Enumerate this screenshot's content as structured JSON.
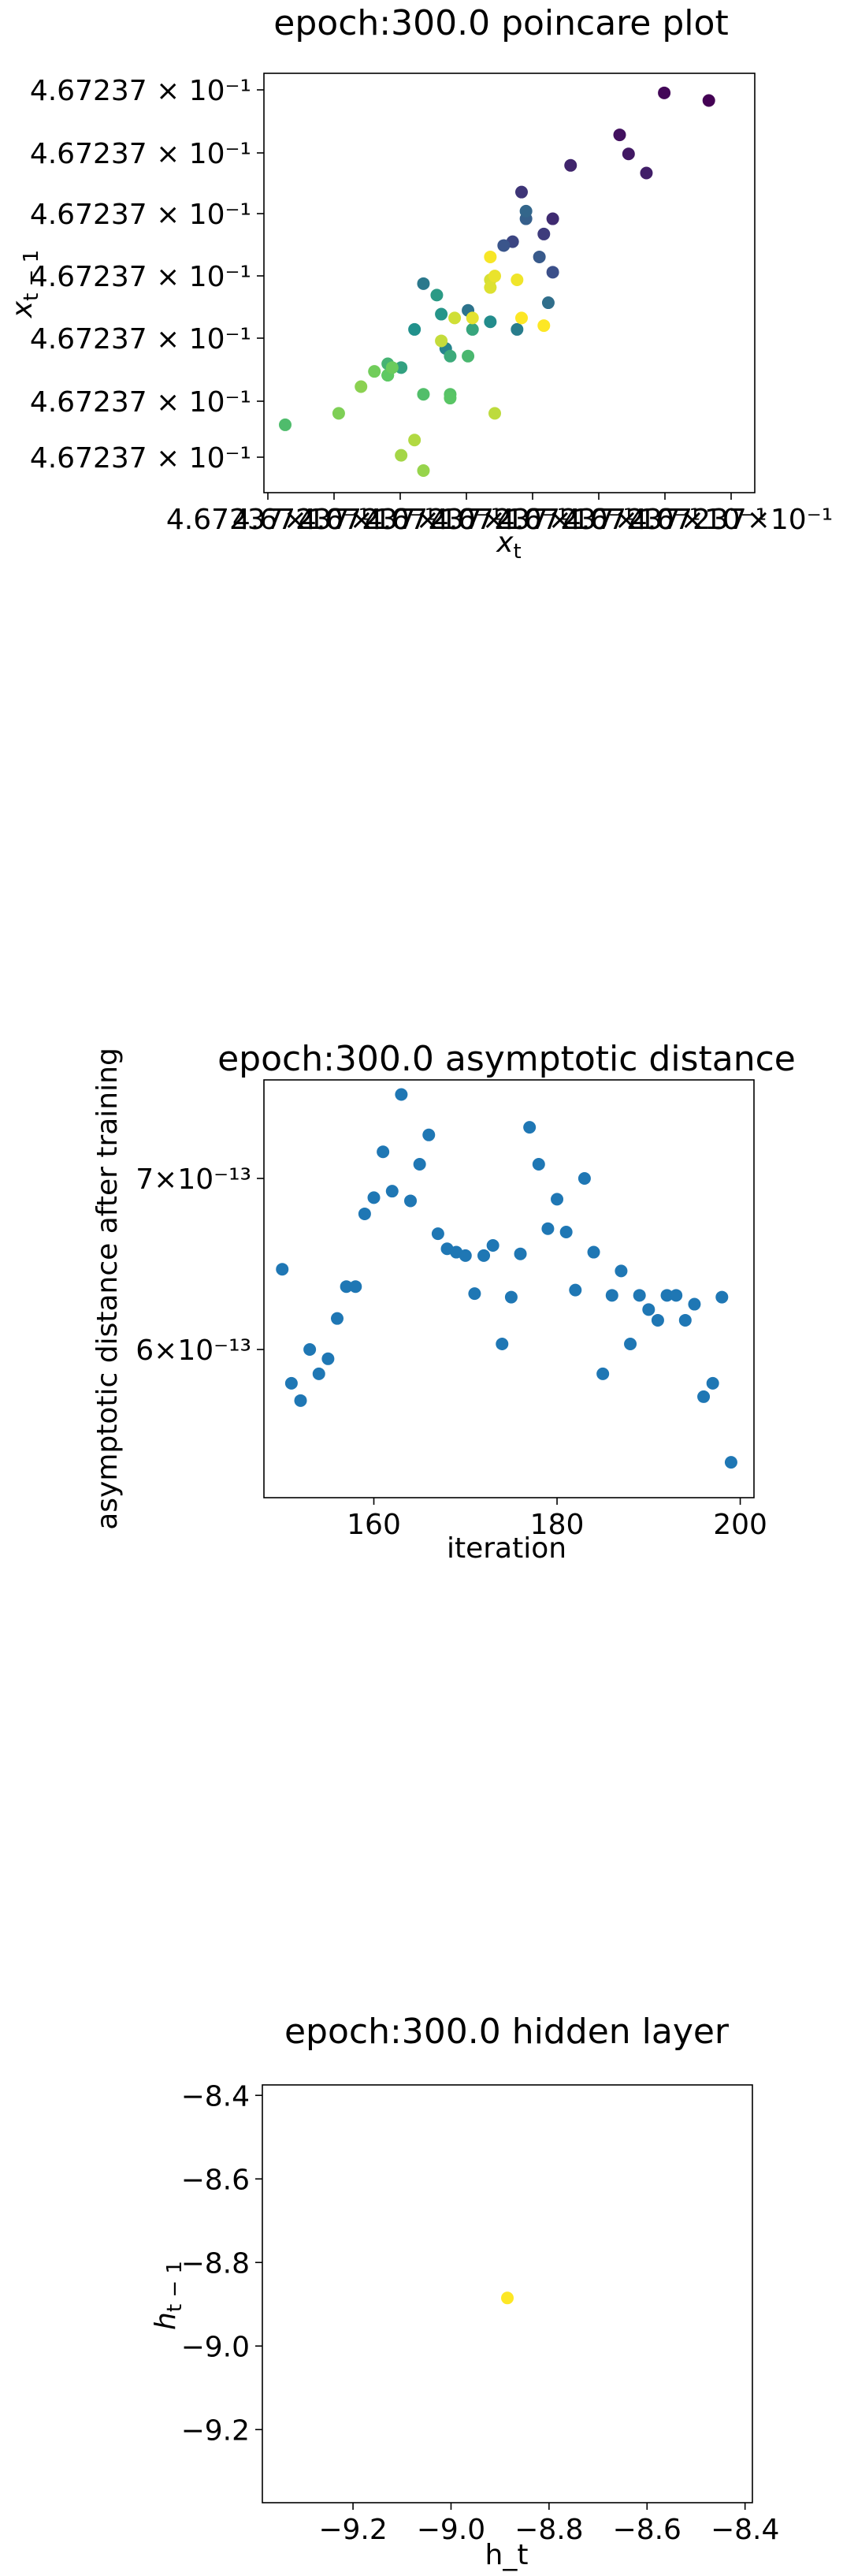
{
  "chart_data": [
    {
      "type": "scatter",
      "title": "epoch:300.0 poincare plot",
      "xlabel": "x_t",
      "ylabel": "x_{t-1}",
      "x_tick_labels": [
        "4.67237×10⁻¹",
        "4.67237×10⁻¹",
        "4.67237×10⁻¹",
        "4.67237×10⁻¹",
        "4.67237×10⁻¹",
        "4.67237×10⁻¹",
        "4.67237×10⁻¹",
        "4.67237×10⁻¹"
      ],
      "y_tick_labels": [
        "4.67237 × 10⁻¹",
        "4.67237 × 10⁻¹",
        "4.67237 × 10⁻¹",
        "4.67237 × 10⁻¹",
        "4.67237 × 10⁻¹",
        "4.67237 × 10⁻¹",
        "4.67237 × 10⁻¹"
      ],
      "colormap": "viridis",
      "xlim": [
        0,
        100
      ],
      "ylim": [
        0,
        100
      ],
      "points": [
        {
          "x": 95,
          "y": 97,
          "c": 0.0
        },
        {
          "x": 85,
          "y": 99,
          "c": 0.02
        },
        {
          "x": 75,
          "y": 88,
          "c": 0.05
        },
        {
          "x": 77,
          "y": 83,
          "c": 0.07
        },
        {
          "x": 81,
          "y": 78,
          "c": 0.09
        },
        {
          "x": 64,
          "y": 80,
          "c": 0.11
        },
        {
          "x": 60,
          "y": 66,
          "c": 0.13
        },
        {
          "x": 53,
          "y": 73,
          "c": 0.16
        },
        {
          "x": 58,
          "y": 62,
          "c": 0.18
        },
        {
          "x": 51,
          "y": 60,
          "c": 0.21
        },
        {
          "x": 60,
          "y": 52,
          "c": 0.24
        },
        {
          "x": 49,
          "y": 59,
          "c": 0.26
        },
        {
          "x": 57,
          "y": 56,
          "c": 0.28
        },
        {
          "x": 54,
          "y": 66,
          "c": 0.3
        },
        {
          "x": 54,
          "y": 68,
          "c": 0.33
        },
        {
          "x": 59,
          "y": 44,
          "c": 0.36
        },
        {
          "x": 41,
          "y": 42,
          "c": 0.38
        },
        {
          "x": 31,
          "y": 49,
          "c": 0.4
        },
        {
          "x": 52,
          "y": 37,
          "c": 0.42
        },
        {
          "x": 36,
          "y": 32,
          "c": 0.45
        },
        {
          "x": 46,
          "y": 39,
          "c": 0.48
        },
        {
          "x": 29,
          "y": 37,
          "c": 0.5
        },
        {
          "x": 35,
          "y": 41,
          "c": 0.52
        },
        {
          "x": 34,
          "y": 46,
          "c": 0.54
        },
        {
          "x": 26,
          "y": 27,
          "c": 0.57
        },
        {
          "x": 42,
          "y": 37,
          "c": 0.59
        },
        {
          "x": 37,
          "y": 30,
          "c": 0.61
        },
        {
          "x": 23,
          "y": 25,
          "c": 0.63
        },
        {
          "x": 23,
          "y": 28,
          "c": 0.65
        },
        {
          "x": 41,
          "y": 30,
          "c": 0.67
        },
        {
          "x": 0,
          "y": 12,
          "c": 0.69
        },
        {
          "x": 31,
          "y": 20,
          "c": 0.7
        },
        {
          "x": 37,
          "y": 20,
          "c": 0.72
        },
        {
          "x": 37,
          "y": 19,
          "c": 0.73
        },
        {
          "x": 23,
          "y": 25,
          "c": 0.75
        },
        {
          "x": 24,
          "y": 27,
          "c": 0.77
        },
        {
          "x": 20,
          "y": 26,
          "c": 0.78
        },
        {
          "x": 12,
          "y": 15,
          "c": 0.8
        },
        {
          "x": 17,
          "y": 22,
          "c": 0.82
        },
        {
          "x": 31,
          "y": 0,
          "c": 0.84
        },
        {
          "x": 26,
          "y": 4,
          "c": 0.86
        },
        {
          "x": 29,
          "y": 8,
          "c": 0.88
        },
        {
          "x": 47,
          "y": 15,
          "c": 0.9
        },
        {
          "x": 35,
          "y": 34,
          "c": 0.91
        },
        {
          "x": 38,
          "y": 40,
          "c": 0.93
        },
        {
          "x": 46,
          "y": 50,
          "c": 0.94
        },
        {
          "x": 46,
          "y": 48,
          "c": 0.95
        },
        {
          "x": 42,
          "y": 40,
          "c": 0.96
        },
        {
          "x": 47,
          "y": 51,
          "c": 0.97
        },
        {
          "x": 52,
          "y": 50,
          "c": 0.98
        },
        {
          "x": 46,
          "y": 56,
          "c": 0.99
        },
        {
          "x": 58,
          "y": 38,
          "c": 1.0
        },
        {
          "x": 53,
          "y": 40,
          "c": 1.0
        }
      ]
    },
    {
      "type": "scatter",
      "title": "epoch:300.0 asymptotic distance",
      "xlabel": "iteration",
      "ylabel": "asymptotic distance after training",
      "yscale": "log",
      "xlim": [
        148,
        201.5
      ],
      "ylim": [
        5.25e-13,
        7.65e-13
      ],
      "x_ticks": [
        160,
        180,
        200
      ],
      "y_ticks": [
        6e-13,
        7e-13
      ],
      "x_tick_labels": [
        "160",
        "180",
        "200"
      ],
      "y_tick_labels": [
        "6×10⁻¹³",
        "7×10⁻¹³"
      ],
      "color": "#1f77b4",
      "x": [
        150,
        151,
        152,
        153,
        154,
        155,
        156,
        157,
        158,
        159,
        160,
        161,
        162,
        163,
        164,
        165,
        166,
        167,
        168,
        169,
        170,
        171,
        172,
        173,
        174,
        175,
        176,
        177,
        178,
        179,
        180,
        181,
        182,
        183,
        184,
        185,
        186,
        187,
        188,
        189,
        190,
        191,
        192,
        193,
        194,
        195,
        196,
        197,
        198,
        199
      ],
      "y": [
        6.45e-13,
        5.82e-13,
        5.73e-13,
        6e-13,
        5.87e-13,
        5.95e-13,
        6.17e-13,
        6.35e-13,
        6.35e-13,
        6.78e-13,
        6.88e-13,
        7.17e-13,
        6.92e-13,
        7.55e-13,
        6.86e-13,
        7.09e-13,
        7.28e-13,
        6.66e-13,
        6.57e-13,
        6.55e-13,
        6.53e-13,
        6.31e-13,
        6.53e-13,
        6.59e-13,
        6.03e-13,
        6.29e-13,
        6.54e-13,
        7.33e-13,
        7.09e-13,
        6.69e-13,
        6.87e-13,
        6.67e-13,
        6.33e-13,
        7e-13,
        6.55e-13,
        5.87e-13,
        6.3e-13,
        6.44e-13,
        6.03e-13,
        6.3e-13,
        6.22e-13,
        6.16e-13,
        6.3e-13,
        6.3e-13,
        6.16e-13,
        6.25e-13,
        5.75e-13,
        5.82e-13,
        6.29e-13,
        5.42e-13
      ]
    },
    {
      "type": "scatter",
      "title": "epoch:300.0 hidden layer",
      "xlabel": "h_t",
      "ylabel": "h_{t-1}",
      "xlim": [
        -9.385,
        -8.385
      ],
      "ylim": [
        -9.375,
        -8.375
      ],
      "x_ticks": [
        -9.2,
        -9.0,
        -8.8,
        -8.6,
        -8.4
      ],
      "y_ticks": [
        -9.2,
        -9.0,
        -8.8,
        -8.6,
        -8.4
      ],
      "x_tick_labels": [
        "−9.2",
        "−9.0",
        "−8.8",
        "−8.6",
        "−8.4"
      ],
      "y_tick_labels": [
        "−9.2",
        "−9.0",
        "−8.8",
        "−8.6",
        "−8.4"
      ],
      "color": "#fde725",
      "x": [
        -8.885
      ],
      "y": [
        -8.885
      ]
    }
  ]
}
